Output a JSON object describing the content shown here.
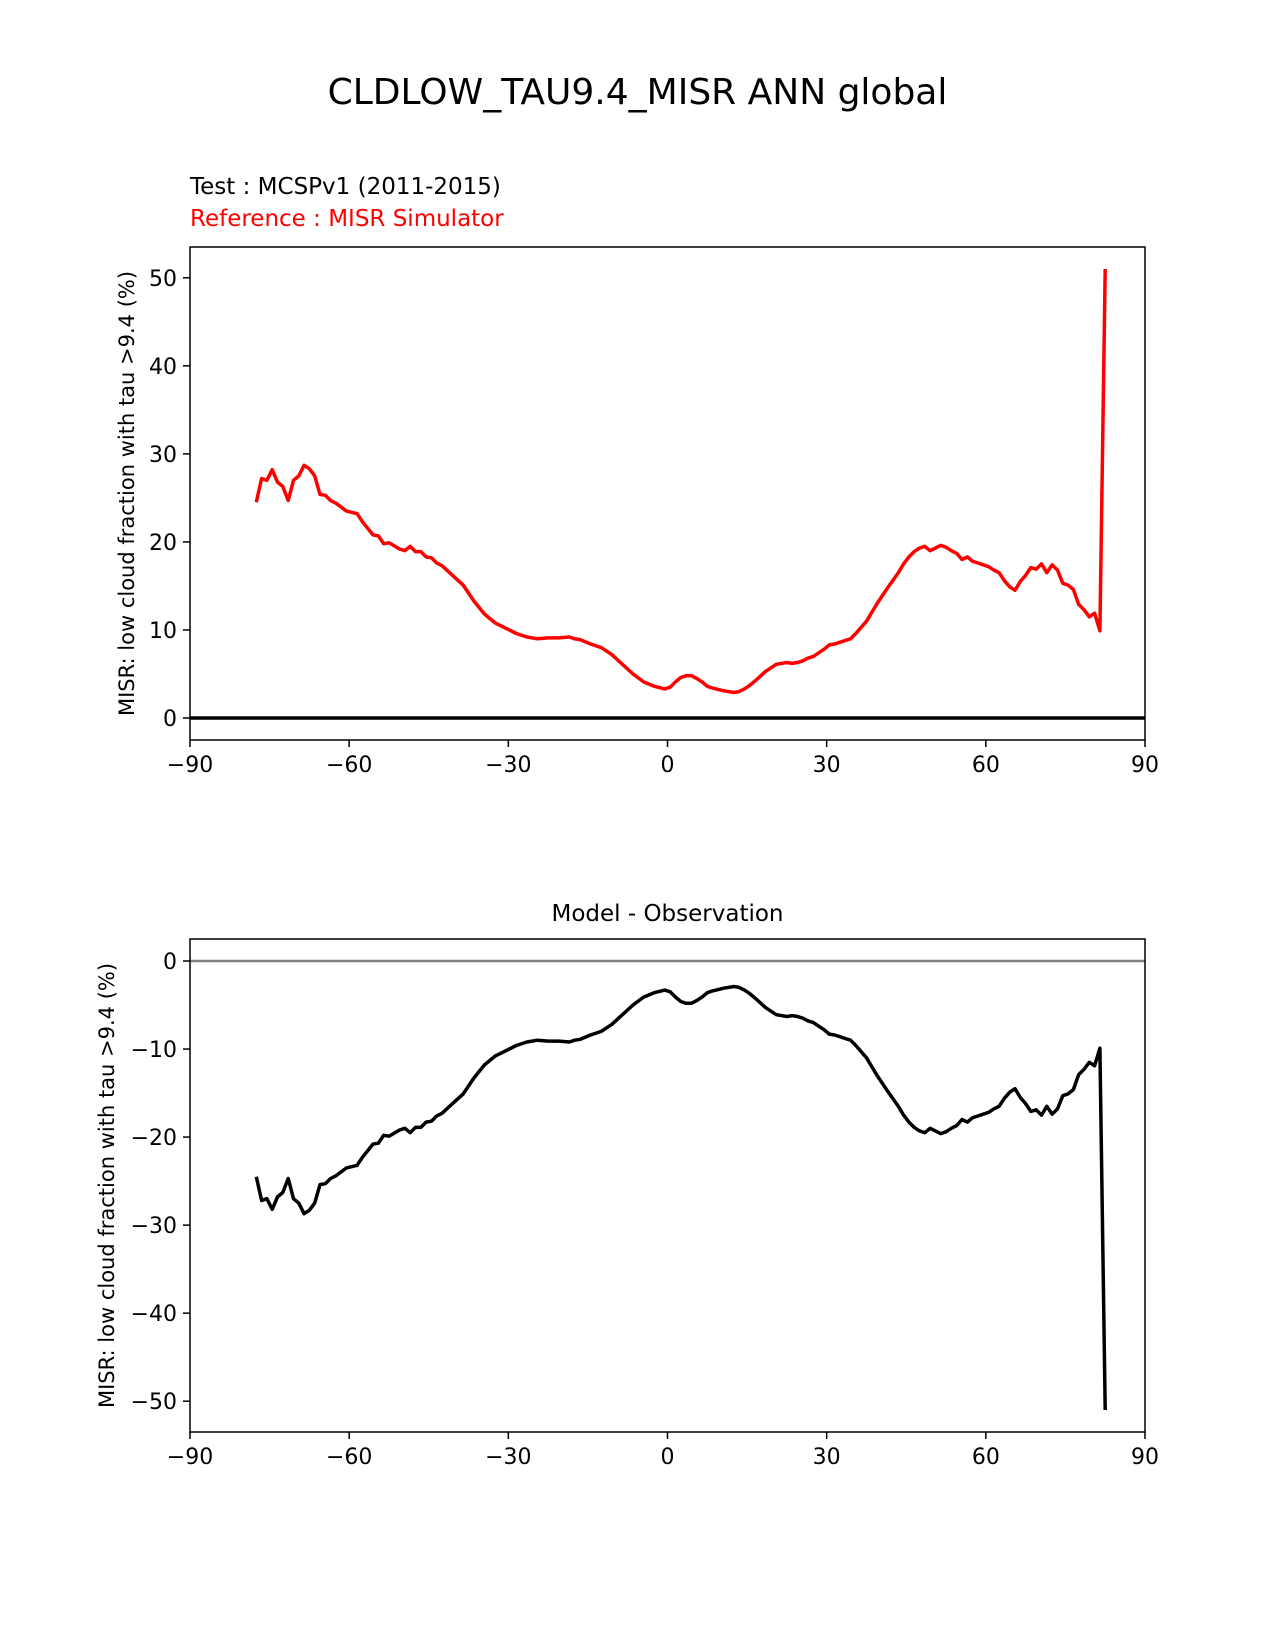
{
  "figure": {
    "title": "CLDLOW_TAU9.4_MISR ANN global",
    "test_label": "Test : MCSPv1 (2011-2015)",
    "reference_label": "Reference : MISR Simulator",
    "reference_color": "#ff0000",
    "diff_title": "Model - Observation"
  },
  "chart_data": [
    {
      "type": "line",
      "title": "",
      "xlabel": "",
      "ylabel": "MISR: low cloud fraction with tau >9.4 (%)",
      "xlim": [
        -90,
        90
      ],
      "ylim": [
        -2.5,
        53.5
      ],
      "xticks": [
        -90,
        -60,
        -30,
        0,
        30,
        60,
        90
      ],
      "xtick_labels": [
        "−90",
        "−60",
        "−30",
        "0",
        "30",
        "60",
        "90"
      ],
      "yticks": [
        0,
        10,
        20,
        30,
        40,
        50
      ],
      "ytick_labels": [
        "0",
        "10",
        "20",
        "30",
        "40",
        "50"
      ],
      "grid": false,
      "hline": {
        "y": 0,
        "color": "#000000"
      },
      "series": [
        {
          "color": "#ff0000",
          "x": [
            -77.5,
            -76.5,
            -75.5,
            -74.5,
            -73.5,
            -72.5,
            -71.5,
            -70.5,
            -69.5,
            -68.5,
            -67.5,
            -66.5,
            -65.5,
            -64.5,
            -63.5,
            -62.5,
            -60.5,
            -58.5,
            -57.5,
            -55.5,
            -54.5,
            -53.5,
            -52.5,
            -50.5,
            -49.5,
            -48.5,
            -47.5,
            -46.5,
            -45.5,
            -44.5,
            -43.5,
            -42.5,
            -40.5,
            -38.5,
            -36.5,
            -34.5,
            -32.5,
            -30.5,
            -28.5,
            -26.5,
            -24.5,
            -22.5,
            -20.5,
            -18.5,
            -17.5,
            -16.5,
            -14.5,
            -12.5,
            -10.5,
            -8.5,
            -6.5,
            -4.5,
            -2.5,
            -0.5,
            0.5,
            1.5,
            2.5,
            3.5,
            4.5,
            5.5,
            6.5,
            7.5,
            8.5,
            10.5,
            12.5,
            13.5,
            14.5,
            15.5,
            16.5,
            18.5,
            20.5,
            22.5,
            23.5,
            24.5,
            25.5,
            26.5,
            27.5,
            28.5,
            29.5,
            30.5,
            31.5,
            32.5,
            33.5,
            34.5,
            35.5,
            37.5,
            39.5,
            41.5,
            43.5,
            44.5,
            45.5,
            46.5,
            47.5,
            48.5,
            49.5,
            50.5,
            51.5,
            52.5,
            53.5,
            54.5,
            55.5,
            56.5,
            57.5,
            58.5,
            59.5,
            60.5,
            61.5,
            62.5,
            63.5,
            64.5,
            65.5,
            66.5,
            67.5,
            68.5,
            69.5,
            70.5,
            71.5,
            72.5,
            73.5,
            74.5,
            75.5,
            76.5,
            77.5,
            78.5,
            79.5,
            80.5,
            81.5,
            82.5
          ],
          "y": [
            24.5,
            27.2,
            27.0,
            28.2,
            26.8,
            26.3,
            24.7,
            27.0,
            27.5,
            28.7,
            28.3,
            27.5,
            25.4,
            25.3,
            24.7,
            24.4,
            23.5,
            23.2,
            22.3,
            20.8,
            20.7,
            19.8,
            19.9,
            19.2,
            19.0,
            19.5,
            18.9,
            18.9,
            18.3,
            18.2,
            17.6,
            17.3,
            16.2,
            15.1,
            13.3,
            11.8,
            10.8,
            10.2,
            9.6,
            9.2,
            9.0,
            9.1,
            9.1,
            9.2,
            9.0,
            8.9,
            8.4,
            8.0,
            7.2,
            6.1,
            5.0,
            4.1,
            3.6,
            3.3,
            3.5,
            4.1,
            4.6,
            4.8,
            4.8,
            4.5,
            4.1,
            3.6,
            3.4,
            3.1,
            2.9,
            3.0,
            3.3,
            3.7,
            4.2,
            5.3,
            6.1,
            6.3,
            6.2,
            6.3,
            6.5,
            6.8,
            7.0,
            7.4,
            7.8,
            8.3,
            8.4,
            8.6,
            8.8,
            9.0,
            9.6,
            11.0,
            13.0,
            14.8,
            16.5,
            17.5,
            18.3,
            18.9,
            19.3,
            19.5,
            19.0,
            19.3,
            19.6,
            19.4,
            19.0,
            18.7,
            18.0,
            18.3,
            17.8,
            17.6,
            17.4,
            17.2,
            16.8,
            16.5,
            15.6,
            14.9,
            14.5,
            15.5,
            16.2,
            17.1,
            16.9,
            17.5,
            16.5,
            17.4,
            16.8,
            15.3,
            15.1,
            14.6,
            12.9,
            12.3,
            11.5,
            11.9,
            9.9,
            51.0
          ]
        }
      ]
    },
    {
      "type": "line",
      "title": "Model - Observation",
      "xlabel": "",
      "ylabel": "MISR: low cloud fraction with tau >9.4 (%)",
      "xlim": [
        -90,
        90
      ],
      "ylim": [
        -53.5,
        2.5
      ],
      "xticks": [
        -90,
        -60,
        -30,
        0,
        30,
        60,
        90
      ],
      "xtick_labels": [
        "−90",
        "−60",
        "−30",
        "0",
        "30",
        "60",
        "90"
      ],
      "yticks": [
        0,
        -10,
        -20,
        -30,
        -40,
        -50
      ],
      "ytick_labels": [
        "0",
        "−10",
        "−20",
        "−30",
        "−40",
        "−50"
      ],
      "grid": false,
      "hline": {
        "y": 0,
        "color": "#808080"
      },
      "series": [
        {
          "color": "#000000",
          "x": [
            -77.5,
            -76.5,
            -75.5,
            -74.5,
            -73.5,
            -72.5,
            -71.5,
            -70.5,
            -69.5,
            -68.5,
            -67.5,
            -66.5,
            -65.5,
            -64.5,
            -63.5,
            -62.5,
            -60.5,
            -58.5,
            -57.5,
            -55.5,
            -54.5,
            -53.5,
            -52.5,
            -50.5,
            -49.5,
            -48.5,
            -47.5,
            -46.5,
            -45.5,
            -44.5,
            -43.5,
            -42.5,
            -40.5,
            -38.5,
            -36.5,
            -34.5,
            -32.5,
            -30.5,
            -28.5,
            -26.5,
            -24.5,
            -22.5,
            -20.5,
            -18.5,
            -17.5,
            -16.5,
            -14.5,
            -12.5,
            -10.5,
            -8.5,
            -6.5,
            -4.5,
            -2.5,
            -0.5,
            0.5,
            1.5,
            2.5,
            3.5,
            4.5,
            5.5,
            6.5,
            7.5,
            8.5,
            10.5,
            12.5,
            13.5,
            14.5,
            15.5,
            16.5,
            18.5,
            20.5,
            22.5,
            23.5,
            24.5,
            25.5,
            26.5,
            27.5,
            28.5,
            29.5,
            30.5,
            31.5,
            32.5,
            33.5,
            34.5,
            35.5,
            37.5,
            39.5,
            41.5,
            43.5,
            44.5,
            45.5,
            46.5,
            47.5,
            48.5,
            49.5,
            50.5,
            51.5,
            52.5,
            53.5,
            54.5,
            55.5,
            56.5,
            57.5,
            58.5,
            59.5,
            60.5,
            61.5,
            62.5,
            63.5,
            64.5,
            65.5,
            66.5,
            67.5,
            68.5,
            69.5,
            70.5,
            71.5,
            72.5,
            73.5,
            74.5,
            75.5,
            76.5,
            77.5,
            78.5,
            79.5,
            80.5,
            81.5,
            82.5
          ],
          "y": [
            -24.5,
            -27.2,
            -27.0,
            -28.2,
            -26.8,
            -26.3,
            -24.7,
            -27.0,
            -27.5,
            -28.7,
            -28.3,
            -27.5,
            -25.4,
            -25.3,
            -24.7,
            -24.4,
            -23.5,
            -23.2,
            -22.3,
            -20.8,
            -20.7,
            -19.8,
            -19.9,
            -19.2,
            -19.0,
            -19.5,
            -18.9,
            -18.9,
            -18.3,
            -18.2,
            -17.6,
            -17.3,
            -16.2,
            -15.1,
            -13.3,
            -11.8,
            -10.8,
            -10.2,
            -9.6,
            -9.2,
            -9.0,
            -9.1,
            -9.1,
            -9.2,
            -9.0,
            -8.9,
            -8.4,
            -8.0,
            -7.2,
            -6.1,
            -5.0,
            -4.1,
            -3.6,
            -3.3,
            -3.5,
            -4.1,
            -4.6,
            -4.8,
            -4.8,
            -4.5,
            -4.1,
            -3.6,
            -3.4,
            -3.1,
            -2.9,
            -3.0,
            -3.3,
            -3.7,
            -4.2,
            -5.3,
            -6.1,
            -6.3,
            -6.2,
            -6.3,
            -6.5,
            -6.8,
            -7.0,
            -7.4,
            -7.8,
            -8.3,
            -8.4,
            -8.6,
            -8.8,
            -9.0,
            -9.6,
            -11.0,
            -13.0,
            -14.8,
            -16.5,
            -17.5,
            -18.3,
            -18.9,
            -19.3,
            -19.5,
            -19.0,
            -19.3,
            -19.6,
            -19.4,
            -19.0,
            -18.7,
            -18.0,
            -18.3,
            -17.8,
            -17.6,
            -17.4,
            -17.2,
            -16.8,
            -16.5,
            -15.6,
            -14.9,
            -14.5,
            -15.5,
            -16.2,
            -17.1,
            -16.9,
            -17.5,
            -16.5,
            -17.4,
            -16.8,
            -15.3,
            -15.1,
            -14.6,
            -12.9,
            -12.3,
            -11.5,
            -11.9,
            -9.9,
            -51.0
          ]
        }
      ]
    }
  ]
}
